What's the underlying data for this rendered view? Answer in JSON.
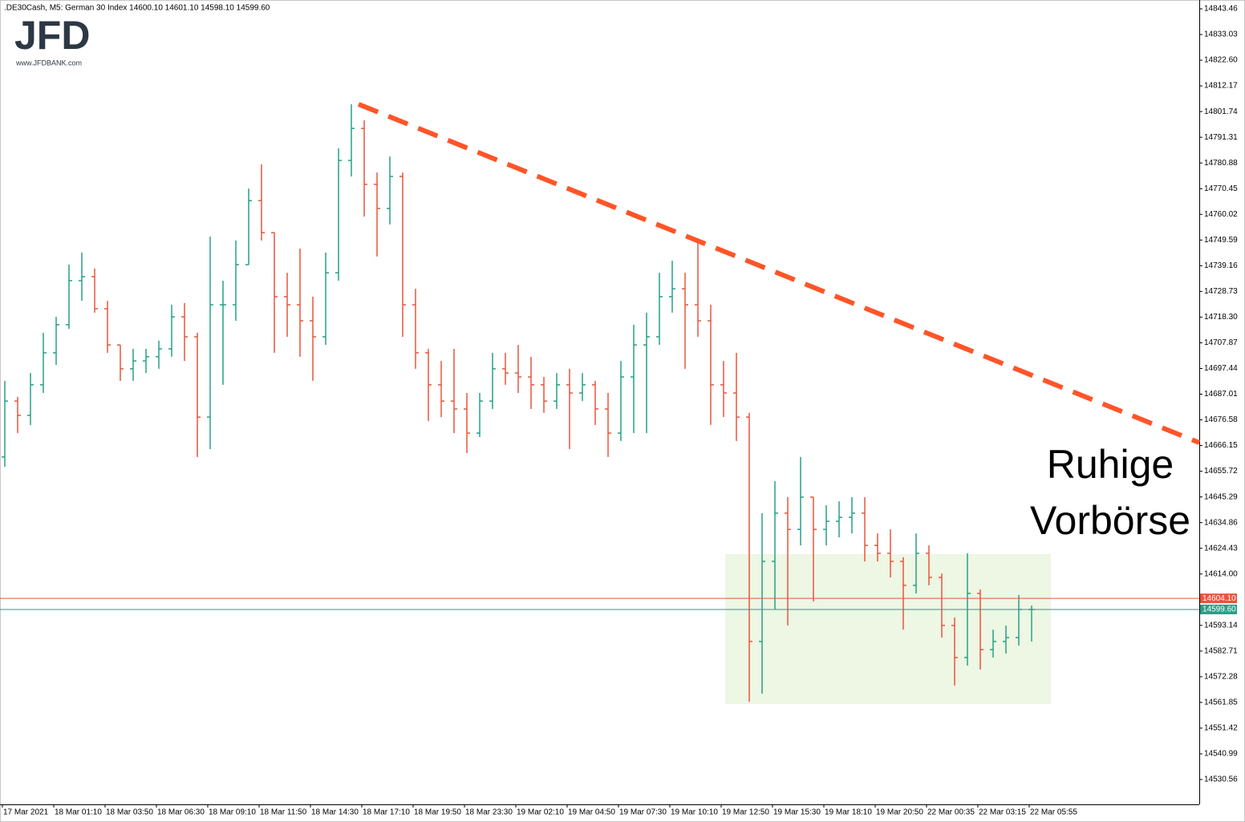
{
  "chart_data": {
    "type": "ohlc",
    "title": ".DE30Cash, M5:  German 30 Index  14600.10 14601.10 14598.10 14599.60",
    "logo": "JFD",
    "logo_url": "www.JFDBANK.com",
    "annotation": [
      "Ruhige",
      "Vorbörse"
    ],
    "up_color": "#26a086",
    "down_color": "#e8553c",
    "ylim": [
      14520.47,
      14847.04
    ],
    "yticks": [
      14843.46,
      14833.03,
      {
        "value": 14822.6,
        "label": "14822.60"
      },
      14812.17,
      14801.74,
      14791.31,
      14780.88,
      14770.45,
      14760.02,
      14749.59,
      14739.16,
      14728.73,
      {
        "value": 14718.3,
        "label": "14718.30"
      },
      14707.87,
      14697.44,
      14687.01,
      14676.58,
      14666.15,
      14655.72,
      14645.29,
      14634.86,
      14624.43,
      {
        "value": 14614,
        "label": "14614.00"
      },
      14593.14,
      14582.71,
      14572.28,
      14561.85,
      14551.42,
      14540.99,
      14530.56
    ],
    "ask": {
      "value": 14604.1,
      "label": "14604.10"
    },
    "ask_color": "#e8553c",
    "bid": {
      "value": 14599.6,
      "label": "14599.60"
    },
    "bid_color": "#26a086",
    "categories": [
      "17 Mar 2021",
      null,
      null,
      null,
      "18 Mar 01:10",
      null,
      null,
      null,
      "18 Mar 03:50",
      null,
      null,
      null,
      "18 Mar 06:30",
      null,
      null,
      null,
      "18 Mar 09:10",
      null,
      null,
      null,
      "18 Mar 11:50",
      null,
      null,
      null,
      "18 Mar 14:30",
      null,
      null,
      null,
      "18 Mar 17:10",
      null,
      null,
      null,
      "18 Mar 19:50",
      null,
      null,
      null,
      "18 Mar 23:30",
      null,
      null,
      null,
      "19 Mar 02:10",
      null,
      null,
      null,
      "19 Mar 04:50",
      null,
      null,
      null,
      "19 Mar 07:30",
      null,
      null,
      null,
      "19 Mar 10:10",
      null,
      null,
      null,
      "19 Mar 12:50",
      null,
      null,
      null,
      "19 Mar 15:30",
      null,
      null,
      null,
      "19 Mar 18:10",
      null,
      null,
      null,
      "19 Mar 20:50",
      null,
      null,
      null,
      "22 Mar 00:35",
      null,
      null,
      null,
      "22 Mar 03:15",
      null,
      null,
      null,
      "22 Mar 05:55"
    ],
    "open": [
      14661.5,
      14684.2,
      14678.4,
      14690.8,
      14703.8,
      14715.2,
      14733.1,
      14734.7,
      14721.7,
      14707.0,
      14697.3,
      14700.5,
      14702.2,
      14705.4,
      14718.4,
      14710.3,
      14677.7,
      14723.3,
      14723.3,
      14739.6,
      14765.6,
      14752.6,
      14726.6,
      14723.3,
      14716.8,
      14710.3,
      14736.3,
      14781.9,
      14794.9,
      14772.2,
      14762.4,
      14775.4,
      14723.3,
      14703.8,
      14690.8,
      14684.2,
      14681.0,
      14671.2,
      14684.2,
      14697.3,
      14695.6,
      14694.0,
      14690.8,
      14684.2,
      14690.8,
      14687.5,
      14690.8,
      14681.0,
      14671.2,
      14694.0,
      14707.0,
      14710.3,
      14726.6,
      14729.8,
      14723.3,
      14716.8,
      14690.8,
      14687.5,
      14677.7,
      14586.6,
      14619.1,
      14638.7,
      14632.1,
      14645.2,
      14632.1,
      14635.4,
      14637.0,
      14638.7,
      14625.6,
      14622.4,
      14619.1,
      14609.4,
      14622.4,
      14612.6,
      14593.1,
      14580.1,
      14606.1,
      14583.3,
      14586.6,
      14588.2,
      14599.6
    ],
    "high": [
      14692.4,
      14685.9,
      14695.6,
      14711.9,
      14718.4,
      14739.6,
      14744.5,
      14738.0,
      14724.9,
      14707.0,
      14705.4,
      14705.4,
      14708.7,
      14723.3,
      14724.0,
      14711.9,
      14751.0,
      14733.1,
      14749.4,
      14770.5,
      14780.3,
      14752.6,
      14736.3,
      14746.1,
      14726.6,
      14744.5,
      14786.8,
      14804.7,
      14798.2,
      14777.0,
      14783.5,
      14777.0,
      14729.8,
      14705.4,
      14700.5,
      14705.4,
      14687.5,
      14687.5,
      14703.8,
      14703.8,
      14707.0,
      14702.2,
      14694.0,
      14695.6,
      14697.3,
      14695.6,
      14692.4,
      14687.5,
      14700.5,
      14715.2,
      14720.1,
      14736.3,
      14741.2,
      14736.3,
      14749.4,
      14723.3,
      14700.5,
      14703.8,
      14679.4,
      14638.7,
      14651.7,
      14645.2,
      14661.5,
      14645.2,
      14641.9,
      14643.5,
      14645.2,
      14645.2,
      14630.5,
      14632.1,
      14620.8,
      14630.5,
      14625.6,
      14614.2,
      14596.3,
      14622.4,
      14607.7,
      14591.4,
      14593.1,
      14605.4,
      14601.2
    ],
    "low": [
      14657.5,
      14671.2,
      14674.5,
      14687.5,
      14698.9,
      14713.5,
      14724.9,
      14720.1,
      14703.8,
      14692.4,
      14692.4,
      14695.6,
      14697.3,
      14702.2,
      14700.5,
      14661.5,
      14664.7,
      14690.8,
      14716.8,
      14739.6,
      14749.4,
      14703.8,
      14710.3,
      14702.2,
      14692.4,
      14707.0,
      14733.1,
      14775.4,
      14759.1,
      14742.9,
      14755.9,
      14710.3,
      14697.3,
      14676.1,
      14677.7,
      14671.2,
      14663.1,
      14669.6,
      14681.0,
      14690.8,
      14687.5,
      14681.0,
      14679.4,
      14681.0,
      14664.7,
      14684.2,
      14674.5,
      14661.5,
      14668.0,
      14671.2,
      14671.2,
      14707.0,
      14720.1,
      14697.3,
      14710.3,
      14674.5,
      14677.7,
      14668.0,
      14562.1,
      14565.4,
      14599.6,
      14593.1,
      14625.6,
      14602.8,
      14625.6,
      14628.9,
      14630.5,
      14619.1,
      14619.1,
      14612.6,
      14591.4,
      14606.1,
      14609.4,
      14588.2,
      14568.7,
      14576.8,
      14575.2,
      14580.1,
      14581.7,
      14584.9,
      14586.6
    ],
    "close": [
      14684.2,
      14678.4,
      14690.8,
      14703.8,
      14715.2,
      14733.1,
      14734.7,
      14721.7,
      14707.0,
      14697.3,
      14700.5,
      14702.2,
      14705.4,
      14718.4,
      14710.3,
      14677.7,
      14723.3,
      14723.3,
      14739.6,
      14765.6,
      14752.6,
      14726.6,
      14723.3,
      14716.8,
      14710.3,
      14736.3,
      14781.9,
      14794.9,
      14772.2,
      14762.4,
      14775.4,
      14723.3,
      14703.8,
      14690.8,
      14684.2,
      14681.0,
      14671.2,
      14684.2,
      14697.3,
      14695.6,
      14694.0,
      14690.8,
      14684.2,
      14690.8,
      14687.5,
      14690.8,
      14681.0,
      14671.2,
      14694.0,
      14707.0,
      14710.3,
      14726.6,
      14729.8,
      14723.3,
      14716.8,
      14690.8,
      14687.5,
      14677.7,
      14586.6,
      14619.1,
      14638.7,
      14632.1,
      14645.2,
      14632.1,
      14635.4,
      14637.0,
      14638.7,
      14625.6,
      14622.4,
      14619.1,
      14609.4,
      14622.4,
      14612.6,
      14593.1,
      14580.1,
      14606.1,
      14583.3,
      14586.6,
      14588.2,
      14599.6,
      14599.6
    ]
  }
}
